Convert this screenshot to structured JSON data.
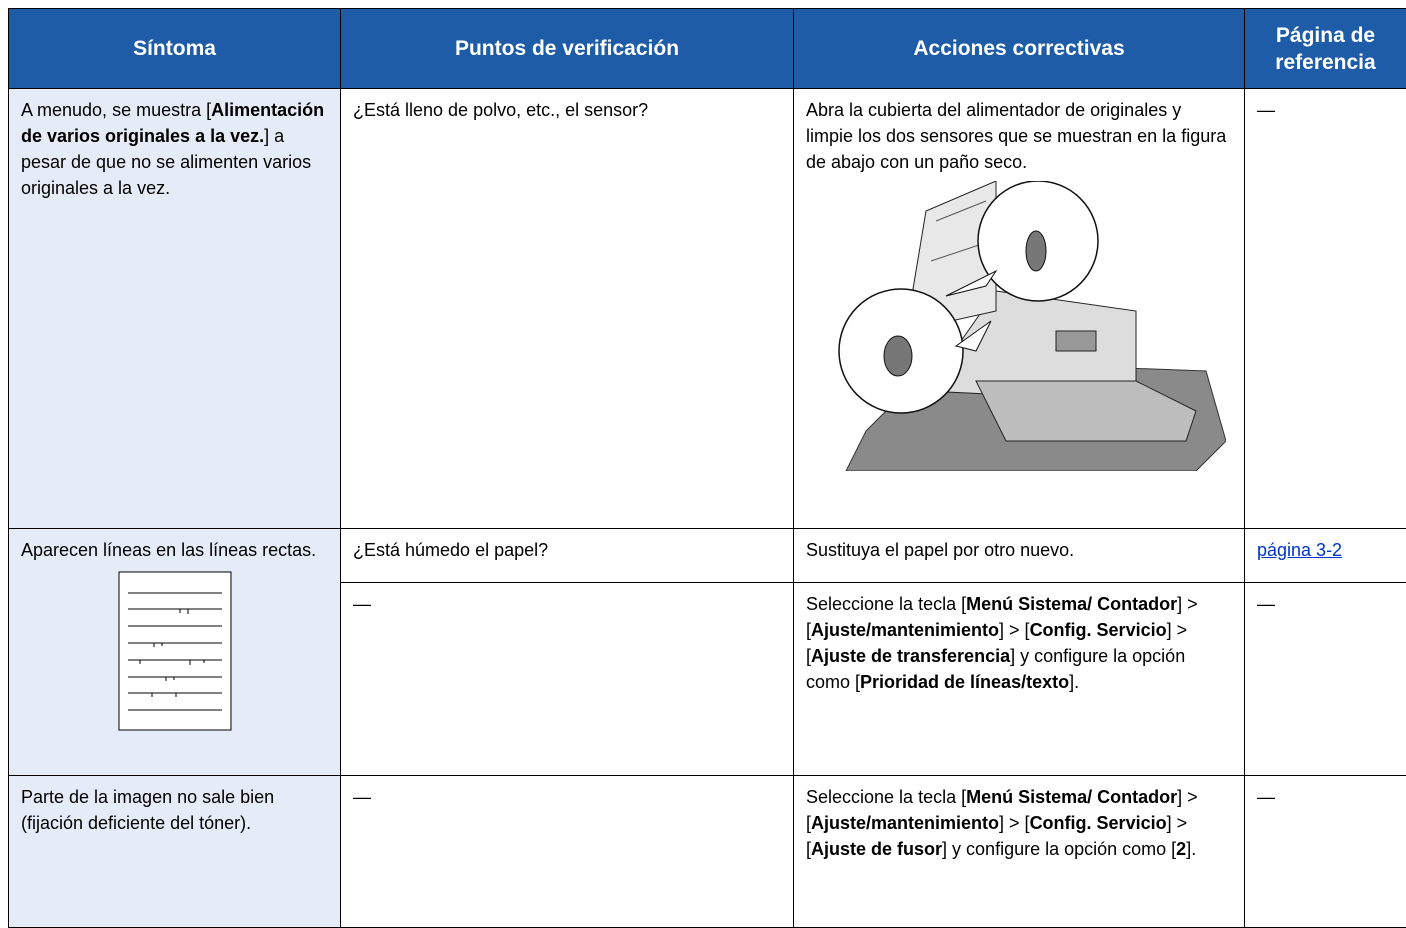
{
  "table": {
    "header": [
      "Síntoma",
      "Puntos de verificación",
      "Acciones correctivas",
      "Página de referencia"
    ],
    "rows": [
      {
        "symptom": [
          {
            "text": "A menudo, se muestra ["
          },
          {
            "text": "Alimentación de varios originales a la vez.",
            "bold": true
          },
          {
            "text": "] a pesar de que no se alimenten varios originales a la vez."
          }
        ],
        "checks": [
          {
            "point": [
              {
                "text": "¿Está lleno de polvo, etc., el sensor?"
              }
            ],
            "action": [
              {
                "text": "Abra la cubierta del alimentador de originales y limpie los dos sensores que se muestran en la figura de abajo con un paño seco."
              }
            ],
            "reference": [
              {
                "text": "—"
              }
            ]
          }
        ]
      },
      {
        "symptom": [
          {
            "text": "Aparecen líneas en las líneas rectas."
          }
        ],
        "checks": [
          {
            "point": [
              {
                "text": "¿Está húmedo el papel?"
              }
            ],
            "action": [
              {
                "text": "Sustituya el papel por otro nuevo."
              }
            ],
            "reference": [
              {
                "text": "página 3-2",
                "link": true
              }
            ]
          },
          {
            "point": [
              {
                "text": "—"
              }
            ],
            "action": [
              {
                "text": "Seleccione la tecla ["
              },
              {
                "text": "Menú Sistema/ Contador",
                "bold": true
              },
              {
                "text": "] > ["
              },
              {
                "text": "Ajuste/mantenimiento",
                "bold": true
              },
              {
                "text": "] > ["
              },
              {
                "text": "Config. Servicio",
                "bold": true
              },
              {
                "text": "] > ["
              },
              {
                "text": "Ajuste de transferencia",
                "bold": true
              },
              {
                "text": "] y configure la opción como ["
              },
              {
                "text": "Prioridad de líneas/texto",
                "bold": true
              },
              {
                "text": "]."
              }
            ],
            "reference": [
              {
                "text": "—"
              }
            ]
          }
        ]
      },
      {
        "symptom": [
          {
            "text": "Parte de la imagen no sale bien (fijación deficiente del tóner)."
          }
        ],
        "checks": [
          {
            "point": [
              {
                "text": "—"
              }
            ],
            "action": [
              {
                "text": "Seleccione la tecla ["
              },
              {
                "text": "Menú Sistema/ Contador",
                "bold": true
              },
              {
                "text": "] > ["
              },
              {
                "text": "Ajuste/mantenimiento",
                "bold": true
              },
              {
                "text": "] > ["
              },
              {
                "text": "Config. Servicio",
                "bold": true
              },
              {
                "text": "] > ["
              },
              {
                "text": "Ajuste de fusor",
                "bold": true
              },
              {
                "text": "] y configure la opción como ["
              },
              {
                "text": "2",
                "bold": true
              },
              {
                "text": "]."
              }
            ],
            "reference": [
              {
                "text": "—"
              }
            ]
          }
        ]
      }
    ]
  }
}
